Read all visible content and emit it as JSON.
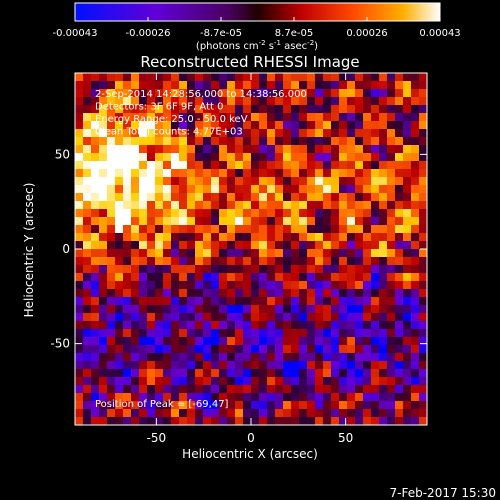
{
  "colorbar": {
    "tick_labels": [
      "-0.00043",
      "-0.00026",
      "-8.7e-05",
      "8.7e-05",
      "0.00026",
      "0.00043"
    ],
    "unit_label": "(photons cm",
    "unit_exp1": "-2",
    "unit_s": " s",
    "unit_exp2": "-1",
    "unit_asec": " asec",
    "unit_exp3": "-2",
    "unit_close": ")"
  },
  "chart_data": {
    "type": "heatmap",
    "title": "Reconstructed RHESSI Image",
    "xlabel": "Heliocentric X (arcsec)",
    "ylabel": "Heliocentric Y (arcsec)",
    "xlim": [
      -93,
      93
    ],
    "ylim": [
      -93,
      93
    ],
    "x_ticks": [
      -50,
      0,
      50
    ],
    "y_ticks": [
      -50,
      0,
      50
    ],
    "x_tick_labels": [
      "-50",
      "0",
      "50"
    ],
    "y_tick_labels": [
      "-50",
      "0",
      "50"
    ],
    "colorbar_range": [
      -0.00043,
      0.00043
    ],
    "colormap": [
      "#0000ff",
      "#6a00d0",
      "#2a0030",
      "#c00000",
      "#ff5a00",
      "#ffd000",
      "#ffffff"
    ],
    "annotations": [
      "2-Sep-2014 14:28:56.000 to 14:38:56.000",
      "Detectors: 3F 6F 9F, Att 0",
      "Energy Range: 25.0 - 50.0 keV",
      "Clean     Total counts: 4.77E+03"
    ],
    "peak_label": "Position of Peak = [-69,47]",
    "peak_position": [
      -69,
      47
    ],
    "grid": false
  },
  "footer": {
    "date": "7-Feb-2017 15:30"
  }
}
